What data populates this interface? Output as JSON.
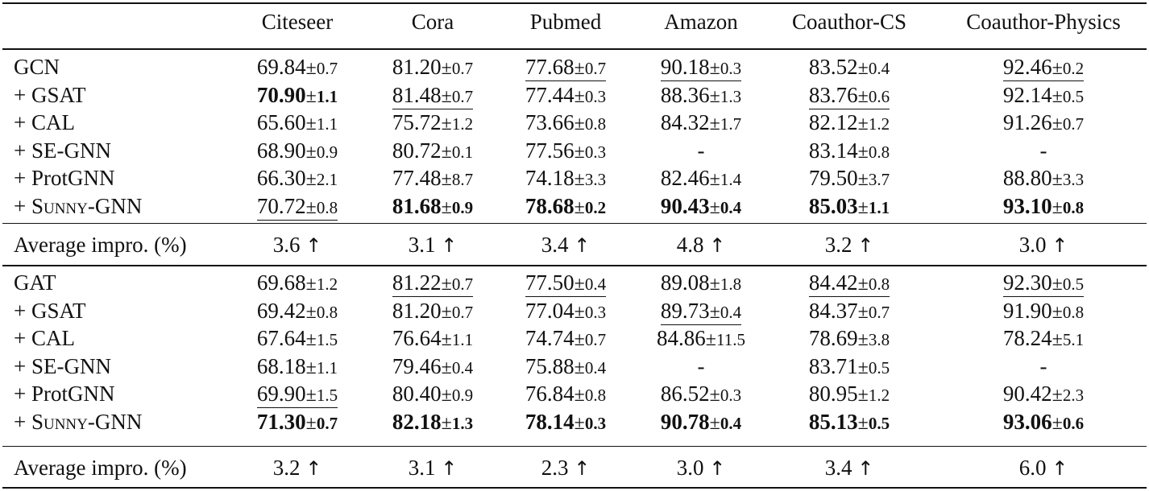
{
  "header": [
    "Citeseer",
    "Cora",
    "Pubmed",
    "Amazon",
    "Coauthor-CS",
    "Coauthor-Physics"
  ],
  "sections": [
    {
      "rows": [
        {
          "label": "GCN",
          "cells": [
            {
              "m": "69.84",
              "s": "0.7"
            },
            {
              "m": "81.20",
              "s": "0.7"
            },
            {
              "m": "77.68",
              "s": "0.7",
              "underline": true
            },
            {
              "m": "90.18",
              "s": "0.3",
              "underline": true
            },
            {
              "m": "83.52",
              "s": "0.4"
            },
            {
              "m": "92.46",
              "s": "0.2",
              "underline": true
            }
          ]
        },
        {
          "label": "+ GSAT",
          "cells": [
            {
              "m": "70.90",
              "s": "1.1",
              "bold": true
            },
            {
              "m": "81.48",
              "s": "0.7",
              "underline": true
            },
            {
              "m": "77.44",
              "s": "0.3"
            },
            {
              "m": "88.36",
              "s": "1.3"
            },
            {
              "m": "83.76",
              "s": "0.6",
              "underline": true
            },
            {
              "m": "92.14",
              "s": "0.5"
            }
          ]
        },
        {
          "label": "+ CAL",
          "cells": [
            {
              "m": "65.60",
              "s": "1.1"
            },
            {
              "m": "75.72",
              "s": "1.2"
            },
            {
              "m": "73.66",
              "s": "0.8"
            },
            {
              "m": "84.32",
              "s": "1.7"
            },
            {
              "m": "82.12",
              "s": "1.2"
            },
            {
              "m": "91.26",
              "s": "0.7"
            }
          ]
        },
        {
          "label": "+ SE-GNN",
          "cells": [
            {
              "m": "68.90",
              "s": "0.9"
            },
            {
              "m": "80.72",
              "s": "0.1"
            },
            {
              "m": "77.56",
              "s": "0.3"
            },
            {
              "m": "-"
            },
            {
              "m": "83.14",
              "s": "0.8"
            },
            {
              "m": "-"
            }
          ]
        },
        {
          "label": "+ ProtGNN",
          "cells": [
            {
              "m": "66.30",
              "s": "2.1"
            },
            {
              "m": "77.48",
              "s": "8.7"
            },
            {
              "m": "74.18",
              "s": "3.3"
            },
            {
              "m": "82.46",
              "s": "1.4"
            },
            {
              "m": "79.50",
              "s": "3.7"
            },
            {
              "m": "88.80",
              "s": "3.3"
            }
          ]
        },
        {
          "label": "+ Sunny-GNN",
          "smallcaps": true,
          "cells": [
            {
              "m": "70.72",
              "s": "0.8",
              "underline": true
            },
            {
              "m": "81.68",
              "s": "0.9",
              "bold": true
            },
            {
              "m": "78.68",
              "s": "0.2",
              "bold": true
            },
            {
              "m": "90.43",
              "s": "0.4",
              "bold": true
            },
            {
              "m": "85.03",
              "s": "1.1",
              "bold": true
            },
            {
              "m": "93.10",
              "s": "0.8",
              "bold": true
            }
          ]
        }
      ],
      "avg_label": "Average impro. (%)",
      "avg": [
        "3.6",
        "3.1",
        "3.4",
        "4.8",
        "3.2",
        "3.0"
      ]
    },
    {
      "rows": [
        {
          "label": "GAT",
          "cells": [
            {
              "m": "69.68",
              "s": "1.2"
            },
            {
              "m": "81.22",
              "s": "0.7",
              "underline": true
            },
            {
              "m": "77.50",
              "s": "0.4",
              "underline": true
            },
            {
              "m": "89.08",
              "s": "1.8"
            },
            {
              "m": "84.42",
              "s": "0.8",
              "underline": true
            },
            {
              "m": "92.30",
              "s": "0.5",
              "underline": true
            }
          ]
        },
        {
          "label": "+ GSAT",
          "cells": [
            {
              "m": "69.42",
              "s": "0.8"
            },
            {
              "m": "81.20",
              "s": "0.7"
            },
            {
              "m": "77.04",
              "s": "0.3"
            },
            {
              "m": "89.73",
              "s": "0.4",
              "underline": true
            },
            {
              "m": "84.37",
              "s": "0.7"
            },
            {
              "m": "91.90",
              "s": "0.8"
            }
          ]
        },
        {
          "label": "+ CAL",
          "cells": [
            {
              "m": "67.64",
              "s": "1.5"
            },
            {
              "m": "76.64",
              "s": "1.1"
            },
            {
              "m": "74.74",
              "s": "0.7"
            },
            {
              "m": "84.86",
              "s": "11.5"
            },
            {
              "m": "78.69",
              "s": "3.8"
            },
            {
              "m": "78.24",
              "s": "5.1"
            }
          ]
        },
        {
          "label": "+ SE-GNN",
          "cells": [
            {
              "m": "68.18",
              "s": "1.1"
            },
            {
              "m": "79.46",
              "s": "0.4"
            },
            {
              "m": "75.88",
              "s": "0.4"
            },
            {
              "m": "-"
            },
            {
              "m": "83.71",
              "s": "0.5"
            },
            {
              "m": "-"
            }
          ]
        },
        {
          "label": "+ ProtGNN",
          "cells": [
            {
              "m": "69.90",
              "s": "1.5",
              "underline": true
            },
            {
              "m": "80.40",
              "s": "0.9"
            },
            {
              "m": "76.84",
              "s": "0.8"
            },
            {
              "m": "86.52",
              "s": "0.3"
            },
            {
              "m": "80.95",
              "s": "1.2"
            },
            {
              "m": "90.42",
              "s": "2.3"
            }
          ]
        },
        {
          "label": "+ Sunny-GNN",
          "smallcaps": true,
          "cells": [
            {
              "m": "71.30",
              "s": "0.7",
              "bold": true
            },
            {
              "m": "82.18",
              "s": "1.3",
              "bold": true
            },
            {
              "m": "78.14",
              "s": "0.3",
              "bold": true
            },
            {
              "m": "90.78",
              "s": "0.4",
              "bold": true
            },
            {
              "m": "85.13",
              "s": "0.5",
              "bold": true
            },
            {
              "m": "93.06",
              "s": "0.6",
              "bold": true
            }
          ]
        }
      ],
      "avg_label": "Average impro. (%)",
      "avg": [
        "3.2",
        "3.1",
        "2.3",
        "3.0",
        "3.4",
        "6.0"
      ]
    }
  ],
  "symbols": {
    "pm": "±",
    "up": "↑"
  }
}
